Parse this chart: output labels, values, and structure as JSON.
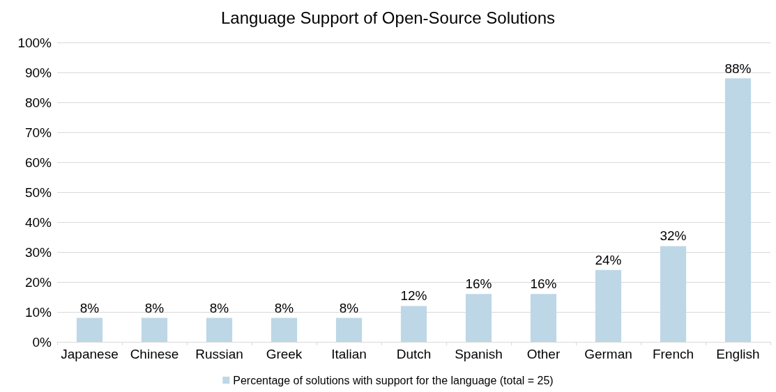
{
  "chart_data": {
    "type": "bar",
    "title": "Language Support of Open-Source Solutions",
    "categories": [
      "Japanese",
      "Chinese",
      "Russian",
      "Greek",
      "Italian",
      "Dutch",
      "Spanish",
      "Other",
      "German",
      "French",
      "English"
    ],
    "series": [
      {
        "name": "Percentage of solutions with support for the language (total = 25)",
        "color": "#bdd7e7",
        "values": [
          8,
          8,
          8,
          8,
          8,
          12,
          16,
          16,
          24,
          32,
          88
        ],
        "value_labels": [
          "8%",
          "8%",
          "8%",
          "8%",
          "8%",
          "12%",
          "16%",
          "16%",
          "24%",
          "32%",
          "88%"
        ]
      }
    ],
    "ylim": [
      0,
      100
    ],
    "yticks": [
      {
        "value": 0,
        "label": "0%"
      },
      {
        "value": 10,
        "label": "10%"
      },
      {
        "value": 20,
        "label": "20%"
      },
      {
        "value": 30,
        "label": "30%"
      },
      {
        "value": 40,
        "label": "40%"
      },
      {
        "value": 50,
        "label": "50%"
      },
      {
        "value": 60,
        "label": "60%"
      },
      {
        "value": 70,
        "label": "70%"
      },
      {
        "value": 80,
        "label": "80%"
      },
      {
        "value": 90,
        "label": "90%"
      },
      {
        "value": 100,
        "label": "100%"
      }
    ],
    "grid": "y",
    "legend": "bottom"
  }
}
